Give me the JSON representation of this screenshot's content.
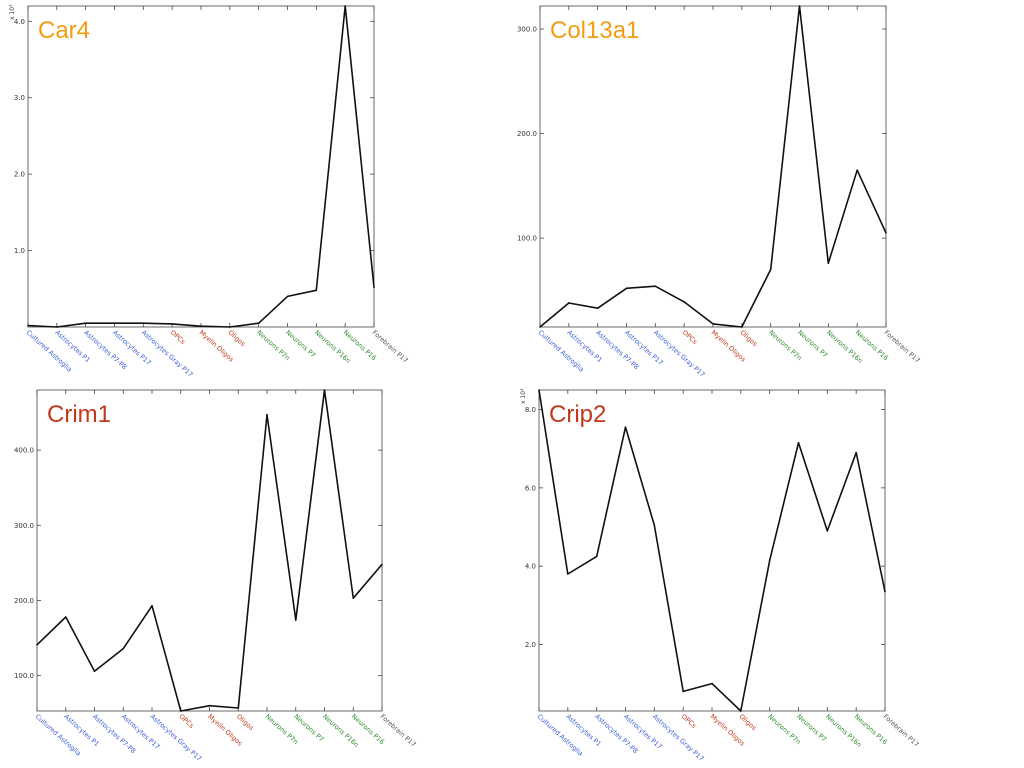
{
  "colors": {
    "astrocyte": "#3a5bd9",
    "oligodendrocyte": "#c0391b",
    "neuron": "#2e8b2e",
    "other": "#555555",
    "line": "#111111",
    "title_orange": "#f39c12",
    "title_red": "#c0391b"
  },
  "categories": [
    {
      "label": "Cultured Astroglia",
      "group": "astrocyte"
    },
    {
      "label": "Astrocytes P1",
      "group": "astrocyte"
    },
    {
      "label": "Astrocytes P7-P8",
      "group": "astrocyte"
    },
    {
      "label": "Astrocytes P17",
      "group": "astrocyte"
    },
    {
      "label": "Astrocytes Gray P17",
      "group": "astrocyte"
    },
    {
      "label": "OPCs",
      "group": "oligodendrocyte"
    },
    {
      "label": "Myelin Oligos",
      "group": "oligodendrocyte"
    },
    {
      "label": "Oligos",
      "group": "oligodendrocyte"
    },
    {
      "label": "Neurons P7n",
      "group": "neuron"
    },
    {
      "label": "Neurons P7",
      "group": "neuron"
    },
    {
      "label": "Neurons P16n",
      "group": "neuron"
    },
    {
      "label": "Neurons P16",
      "group": "neuron"
    },
    {
      "label": "Forebrain P17",
      "group": "other"
    }
  ],
  "chart_data": [
    {
      "type": "line",
      "title": "Car4",
      "title_color": "#f39c12",
      "multiplier": "x 10³",
      "ylim": [
        0,
        4.2
      ],
      "yticks": [
        1.0,
        2.0,
        3.0,
        4.0
      ],
      "ytick_labels": [
        "1.0",
        "2.0",
        "3.0",
        "4.0"
      ],
      "values": [
        0.02,
        0.0,
        0.05,
        0.05,
        0.05,
        0.04,
        0.01,
        0.0,
        0.05,
        0.4,
        0.48,
        4.2,
        0.52
      ]
    },
    {
      "type": "line",
      "title": "Col13a1",
      "title_color": "#f39c12",
      "multiplier": "",
      "ylim": [
        15,
        322
      ],
      "yticks": [
        100.0,
        200.0,
        300.0
      ],
      "ytick_labels": [
        "100.0",
        "200.0",
        "300.0"
      ],
      "values": [
        15,
        38,
        33,
        52,
        54,
        39,
        18,
        15,
        70,
        322,
        76,
        165,
        105
      ]
    },
    {
      "type": "line",
      "title": "Crim1",
      "title_color": "#c0391b",
      "multiplier": "",
      "ylim": [
        53,
        480
      ],
      "yticks": [
        100.0,
        200.0,
        300.0,
        400.0
      ],
      "ytick_labels": [
        "100.0",
        "200.0",
        "300.0",
        "400.0"
      ],
      "values": [
        141,
        178,
        106,
        136,
        193,
        53,
        60,
        57,
        447,
        174,
        480,
        203,
        248
      ]
    },
    {
      "type": "line",
      "title": "Crip2",
      "title_color": "#c0391b",
      "multiplier": "x 10³",
      "ylim": [
        0.3,
        8.5
      ],
      "yticks": [
        2.0,
        4.0,
        6.0,
        8.0
      ],
      "ytick_labels": [
        "2.0",
        "4.0",
        "6.0",
        "8.0"
      ],
      "values": [
        8.5,
        3.8,
        4.25,
        7.55,
        5.05,
        0.8,
        1.0,
        0.3,
        4.15,
        7.15,
        4.9,
        6.9,
        3.35
      ]
    }
  ]
}
